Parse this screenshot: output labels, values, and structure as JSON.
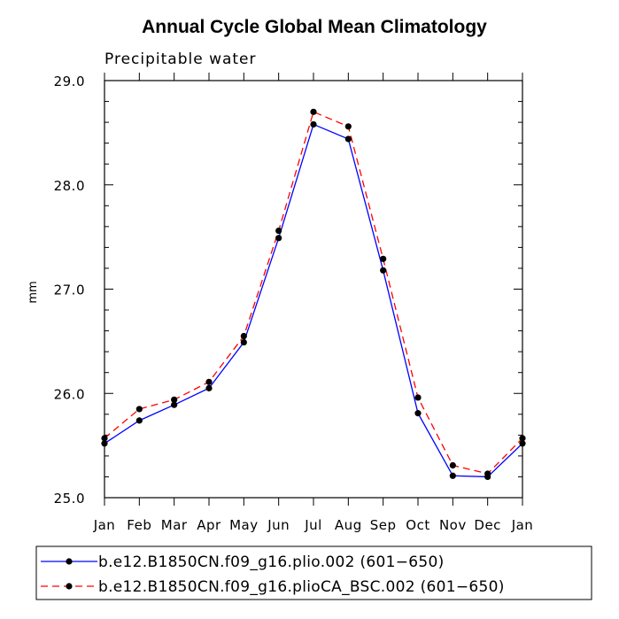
{
  "chart_data": {
    "type": "line",
    "title": "Annual Cycle Global Mean Climatology",
    "subtitle": "Precipitable water",
    "xlabel": "",
    "ylabel": "mm",
    "categories": [
      "Jan",
      "Feb",
      "Mar",
      "Apr",
      "May",
      "Jun",
      "Jul",
      "Aug",
      "Sep",
      "Oct",
      "Nov",
      "Dec",
      "Jan"
    ],
    "ylim": [
      25.0,
      29.0
    ],
    "yticks": [
      25.0,
      26.0,
      27.0,
      28.0,
      29.0
    ],
    "ytick_labels": [
      "25.0",
      "26.0",
      "27.0",
      "28.0",
      "29.0"
    ],
    "series": [
      {
        "name": "b.e12.B1850CN.f09_g16.plio.002 (601−650)",
        "color": "#0000ff",
        "dash": "solid",
        "values": [
          25.52,
          25.74,
          25.89,
          26.05,
          26.49,
          27.49,
          28.58,
          28.44,
          27.18,
          25.81,
          25.21,
          25.2,
          25.52
        ]
      },
      {
        "name": "b.e12.B1850CN.f09_g16.plioCA_BSC.002 (601−650)",
        "color": "#ff0000",
        "dash": "dashed",
        "values": [
          25.57,
          25.85,
          25.94,
          26.11,
          26.55,
          27.56,
          28.7,
          28.56,
          27.29,
          25.96,
          25.31,
          25.23,
          25.57
        ]
      }
    ],
    "legend_position": "bottom"
  }
}
